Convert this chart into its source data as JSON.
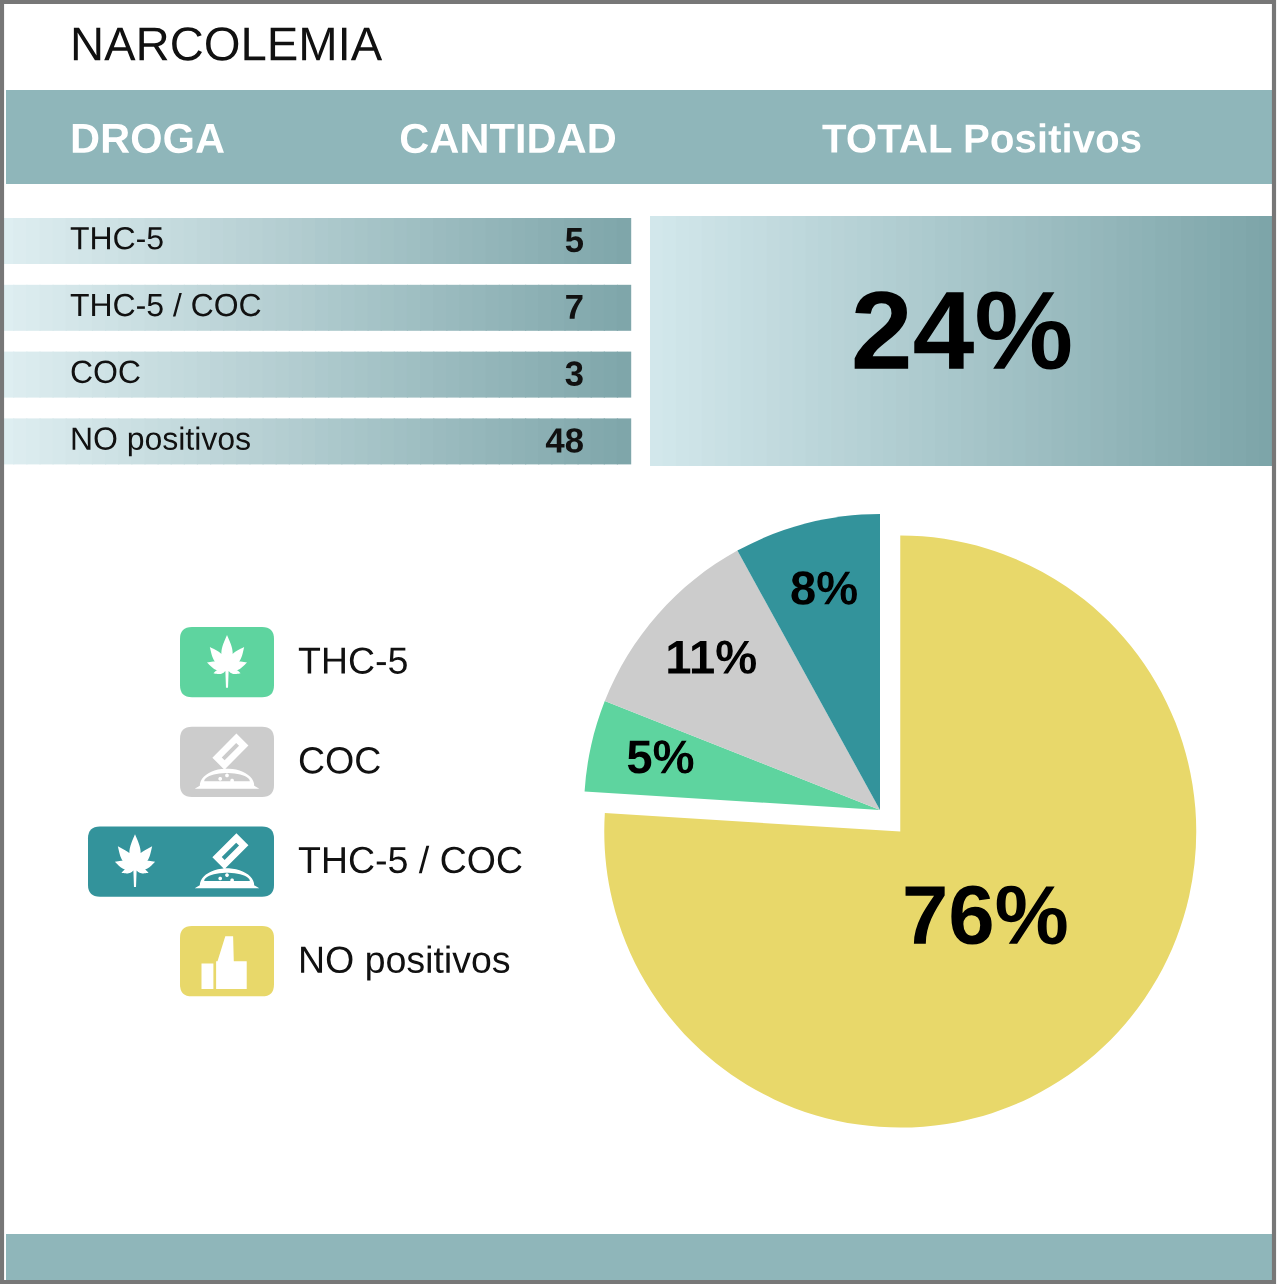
{
  "chart_data": [
    {
      "type": "other",
      "title": "NARCOLEMIA",
      "categories": [
        "THC-5",
        "THC-5 / COC",
        "COC",
        "NO positivos"
      ],
      "values": [
        5,
        7,
        3,
        48
      ],
      "data_labels": true,
      "annotations": [
        "DROGA",
        "CANTIDAD",
        "TOTAL Positivos",
        "24%"
      ]
    },
    {
      "type": "pie",
      "categories": [
        "THC-5",
        "COC",
        "THC-5 / COC",
        "NO positivos"
      ],
      "values": [
        5,
        11,
        8,
        76
      ],
      "colors": [
        "#5ed49f",
        "#cccccc",
        "#33939b",
        "#e8d86a"
      ],
      "value_labels": [
        "5%",
        "11%",
        "8%",
        "76%"
      ],
      "legend": "left"
    }
  ]
}
